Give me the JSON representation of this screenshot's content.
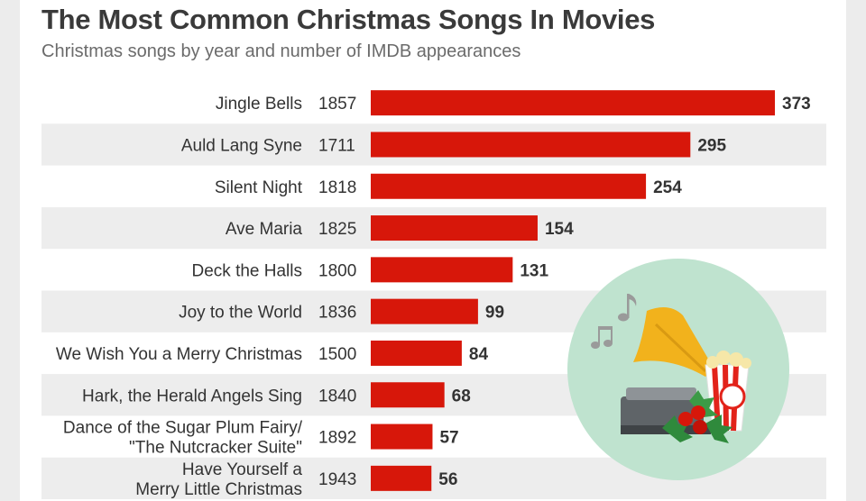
{
  "header": {
    "title": "The Most Common Christmas Songs In Movies",
    "subtitle": "Christmas songs by year and number of IMDB appearances"
  },
  "colors": {
    "bar": "#d7170a",
    "stripe": "#ededed",
    "text": "#333333"
  },
  "illustration": {
    "icon": "gramophone-popcorn-holly-icon"
  },
  "chart_data": {
    "type": "bar",
    "orientation": "horizontal",
    "title": "The Most Common Christmas Songs In Movies",
    "subtitle": "Christmas songs by year and number of IMDB appearances",
    "categories": [
      [
        "Jingle Bells"
      ],
      [
        "Auld Lang Syne"
      ],
      [
        "Silent Night"
      ],
      [
        "Ave Maria"
      ],
      [
        "Deck the Halls"
      ],
      [
        "Joy to the World"
      ],
      [
        "We Wish You a Merry Christmas"
      ],
      [
        "Hark, the Herald Angels Sing"
      ],
      [
        "Dance of the Sugar Plum Fairy/",
        "\"The Nutcracker Suite\""
      ],
      [
        "Have Yourself a",
        "Merry Little Christmas"
      ]
    ],
    "years": [
      "1857",
      "1711",
      "1818",
      "1825",
      "1800",
      "1836",
      "1500",
      "1840",
      "1892",
      "1943"
    ],
    "values": [
      373,
      295,
      254,
      154,
      131,
      99,
      84,
      68,
      57,
      56
    ],
    "xlim": [
      0,
      373
    ]
  }
}
